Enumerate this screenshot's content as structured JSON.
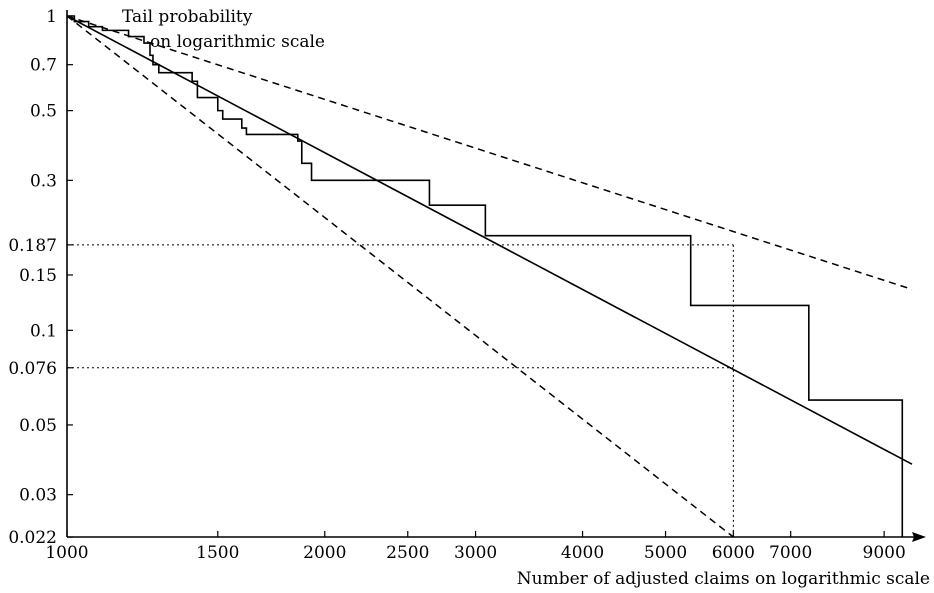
{
  "chart_data": {
    "type": "line",
    "title": "",
    "ylabel_lines": [
      "Tail probability",
      "on logarithmic scale"
    ],
    "xlabel": "Number of adjusted claims on logarithmic scale",
    "x_scale": "log",
    "y_scale": "log",
    "xlim": [
      1000,
      9700
    ],
    "ylim": [
      0.022,
      1
    ],
    "x_ticks": [
      1000,
      1500,
      2000,
      2500,
      3000,
      4000,
      5000,
      6000,
      7000,
      9000
    ],
    "x_tick_labels": [
      "1000",
      "1500",
      "2000",
      "2500",
      "3000",
      "4000",
      "5000",
      "6000",
      "7000",
      "9000"
    ],
    "y_ticks": [
      1,
      0.7,
      0.5,
      0.3,
      0.187,
      0.15,
      0.1,
      0.076,
      0.05,
      0.03,
      0.022
    ],
    "y_tick_labels": [
      "1",
      "0.7",
      "0.5",
      "0.3",
      "0.187",
      "0.15",
      "0.1",
      "0.076",
      "0.05",
      "0.03",
      "0.022"
    ],
    "series": [
      {
        "style": "step",
        "points": [
          [
            1000,
            1
          ],
          [
            1020,
            0.96
          ],
          [
            1060,
            0.925
          ],
          [
            1100,
            0.9
          ],
          [
            1180,
            0.86
          ],
          [
            1230,
            0.82
          ],
          [
            1250,
            0.75
          ],
          [
            1260,
            0.7
          ],
          [
            1280,
            0.66
          ],
          [
            1400,
            0.62
          ],
          [
            1420,
            0.55
          ],
          [
            1500,
            0.5
          ],
          [
            1520,
            0.47
          ],
          [
            1600,
            0.44
          ],
          [
            1620,
            0.42
          ],
          [
            1860,
            0.4
          ],
          [
            1880,
            0.34
          ],
          [
            1930,
            0.3
          ],
          [
            2650,
            0.25
          ],
          [
            3080,
            0.2
          ],
          [
            5350,
            0.12
          ],
          [
            7350,
            0.06
          ],
          [
            9450,
            0.022
          ]
        ]
      },
      {
        "style": "solid",
        "points": [
          [
            1000,
            1
          ],
          [
            9700,
            0.0375
          ]
        ]
      },
      {
        "style": "dashed",
        "points": [
          [
            1000,
            1
          ],
          [
            9700,
            0.135
          ]
        ]
      },
      {
        "style": "dashed",
        "points": [
          [
            1000,
            1
          ],
          [
            6000,
            0.022
          ]
        ]
      }
    ],
    "reference_lines": [
      {
        "y": 0.187,
        "x_end": 6000
      },
      {
        "y": 0.076,
        "x_end": 6000
      },
      {
        "x": 6000,
        "y_top": 0.187,
        "y_bottom": 0.022
      }
    ]
  }
}
